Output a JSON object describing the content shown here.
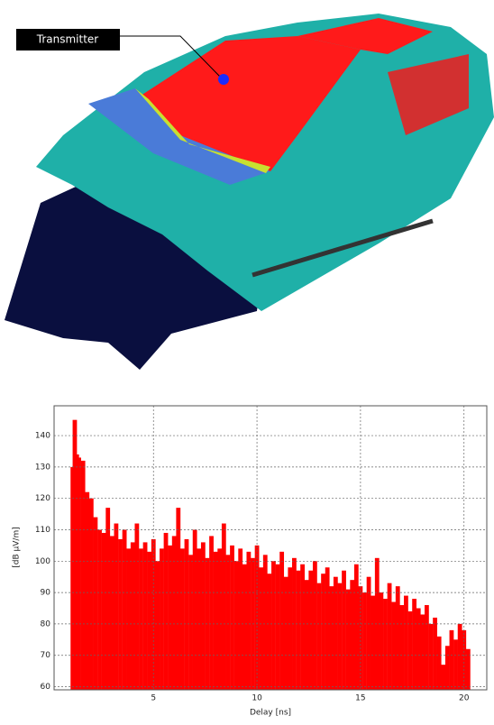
{
  "annotation": "Transmitter",
  "chart_data": {
    "type": "stem",
    "color": "#ff0000",
    "grid": true,
    "xlabel": "Delay [ns]",
    "ylabel": "[dB µV/m]",
    "xlim": [
      0.2,
      21.1
    ],
    "ylim": [
      59,
      149.5
    ],
    "xticks": [
      5,
      10,
      15,
      20
    ],
    "yticks": [
      60,
      70,
      80,
      90,
      100,
      110,
      120,
      130,
      140
    ],
    "x": [
      1.1,
      1.2,
      1.3,
      1.4,
      1.6,
      1.8,
      2.0,
      2.2,
      2.4,
      2.6,
      2.8,
      3.0,
      3.2,
      3.4,
      3.6,
      3.8,
      4.0,
      4.2,
      4.4,
      4.6,
      4.8,
      5.0,
      5.2,
      5.4,
      5.6,
      5.8,
      6.0,
      6.2,
      6.4,
      6.6,
      6.8,
      7.0,
      7.2,
      7.4,
      7.6,
      7.8,
      8.0,
      8.2,
      8.4,
      8.6,
      8.8,
      9.0,
      9.2,
      9.4,
      9.6,
      9.8,
      10.0,
      10.2,
      10.4,
      10.6,
      10.8,
      11.0,
      11.2,
      11.4,
      11.6,
      11.8,
      12.0,
      12.2,
      12.4,
      12.6,
      12.8,
      13.0,
      13.2,
      13.4,
      13.6,
      13.8,
      14.0,
      14.2,
      14.4,
      14.6,
      14.8,
      15.0,
      15.2,
      15.4,
      15.6,
      15.8,
      16.0,
      16.2,
      16.4,
      16.6,
      16.8,
      17.0,
      17.2,
      17.4,
      17.6,
      17.8,
      18.0,
      18.2,
      18.4,
      18.6,
      18.8,
      19.0,
      19.2,
      19.4,
      19.6,
      19.8,
      20.0,
      20.2
    ],
    "values": [
      130,
      145,
      134,
      133,
      132,
      122,
      120,
      114,
      110,
      109,
      117,
      108,
      112,
      107,
      110,
      104,
      106,
      112,
      104,
      106,
      103,
      107,
      100,
      104,
      109,
      105,
      108,
      117,
      104,
      107,
      102,
      110,
      104,
      106,
      101,
      108,
      103,
      104,
      112,
      102,
      105,
      100,
      104,
      99,
      103,
      101,
      105,
      98,
      102,
      96,
      100,
      99,
      103,
      95,
      98,
      101,
      97,
      99,
      94,
      97,
      100,
      93,
      96,
      98,
      92,
      95,
      93,
      97,
      91,
      94,
      99,
      92,
      90,
      95,
      89,
      101,
      90,
      88,
      93,
      87,
      92,
      86,
      89,
      84,
      88,
      85,
      83,
      86,
      80,
      82,
      76,
      67,
      73,
      78,
      75,
      80,
      78,
      72
    ]
  }
}
